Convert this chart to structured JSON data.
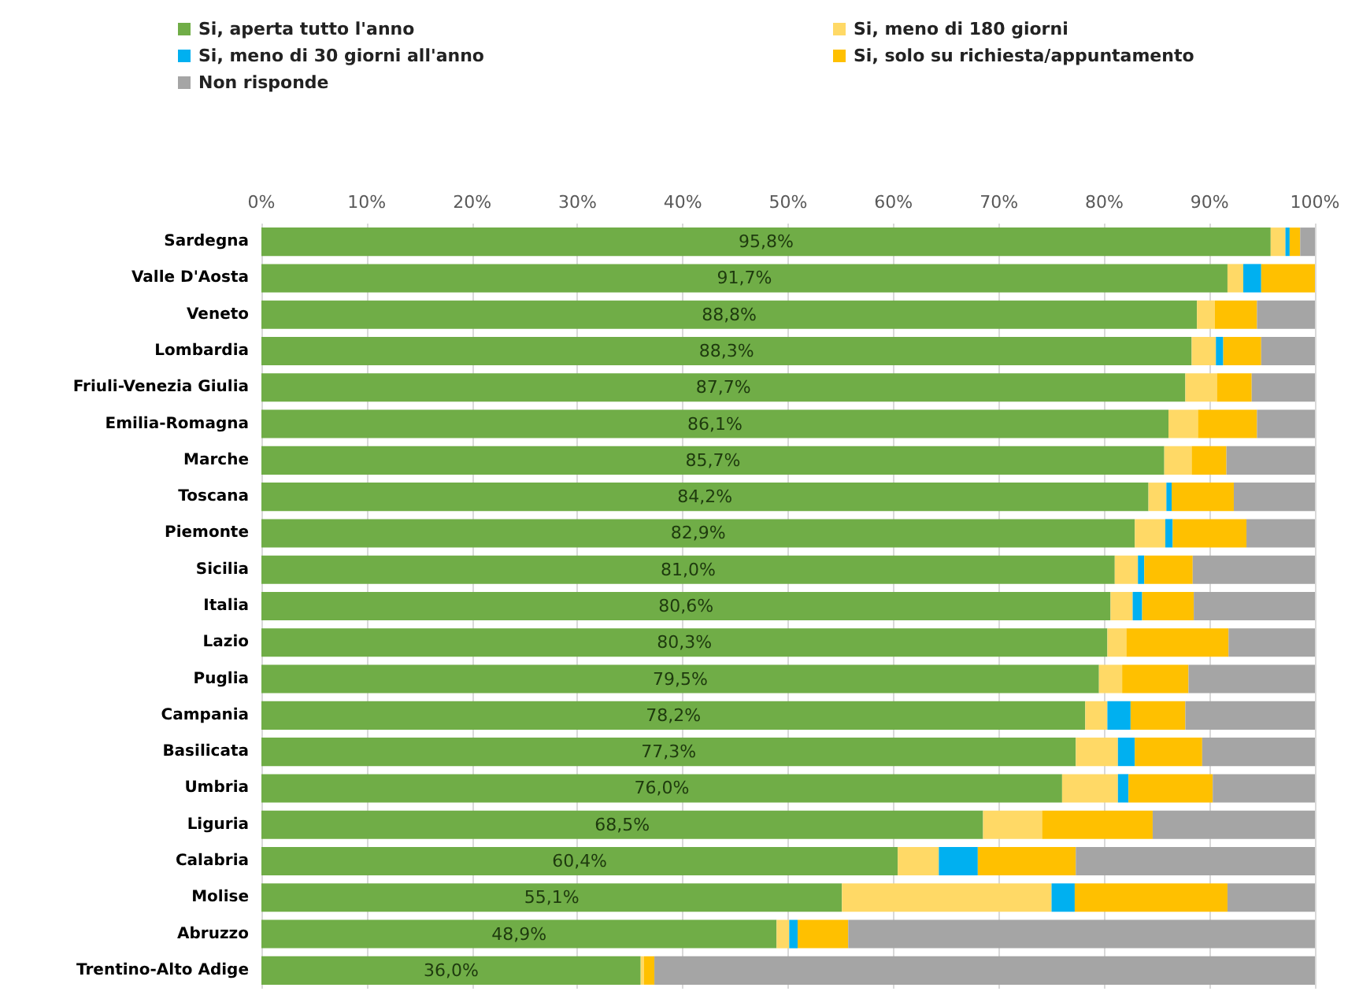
{
  "chart_data": {
    "type": "bar",
    "orientation": "horizontal",
    "stacked": true,
    "legend": "top",
    "grid": "x",
    "categories": [
      "Sardegna",
      "Valle D'Aosta",
      "Veneto",
      "Lombardia",
      "Friuli-Venezia Giulia",
      "Emilia-Romagna",
      "Marche",
      "Toscana",
      "Piemonte",
      "Sicilia",
      "Italia",
      "Lazio",
      "Puglia",
      "Campania",
      "Basilicata",
      "Umbria",
      "Liguria",
      "Calabria",
      "Molise",
      "Abruzzo",
      "Trentino-Alto Adige"
    ],
    "xlim": [
      0,
      100
    ],
    "xticks": [
      {
        "value": 0,
        "label": "0%"
      },
      {
        "value": 10,
        "label": "10%"
      },
      {
        "value": 20,
        "label": "20%"
      },
      {
        "value": 30,
        "label": "30%"
      },
      {
        "value": 40,
        "label": "40%"
      },
      {
        "value": 50,
        "label": "50%"
      },
      {
        "value": 60,
        "label": "60%"
      },
      {
        "value": 70,
        "label": "70%"
      },
      {
        "value": 80,
        "label": "80%"
      },
      {
        "value": 90,
        "label": "90%"
      },
      {
        "value": 100,
        "label": "100%"
      }
    ],
    "series": [
      {
        "name": "Si, aperta tutto l'anno",
        "color": "#70ad47",
        "values": [
          95.8,
          91.7,
          88.8,
          88.3,
          87.7,
          86.1,
          85.7,
          84.2,
          82.9,
          81.0,
          80.6,
          80.3,
          79.5,
          78.2,
          77.3,
          76.0,
          68.5,
          60.4,
          55.1,
          48.9,
          36.0
        ],
        "value_labels": [
          "95,8%",
          "91,7%",
          "88,8%",
          "88,3%",
          "87,7%",
          "86,1%",
          "85,7%",
          "84,2%",
          "82,9%",
          "81,0%",
          "80,6%",
          "80,3%",
          "79,5%",
          "78,2%",
          "77,3%",
          "76,0%",
          "68,5%",
          "60,4%",
          "55,1%",
          "48,9%",
          "36,0%"
        ]
      },
      {
        "name": "Si, meno di 180 giorni",
        "color": "#ffd966",
        "values": [
          1.4,
          1.5,
          1.7,
          2.3,
          3.0,
          2.8,
          2.6,
          1.7,
          2.9,
          2.2,
          2.1,
          1.8,
          2.2,
          2.1,
          4.0,
          5.3,
          5.6,
          3.9,
          19.9,
          1.2,
          0.3
        ]
      },
      {
        "name": "Si, meno di 30 giorni all'anno",
        "color": "#00b0f0",
        "values": [
          0.4,
          1.7,
          0,
          0.7,
          0,
          0,
          0,
          0.5,
          0.7,
          0.6,
          0.9,
          0,
          0,
          2.2,
          1.6,
          1.0,
          0,
          3.7,
          2.2,
          0.8,
          0
        ]
      },
      {
        "name": "Si, solo su richiesta/appuntamento",
        "color": "#ffc000",
        "values": [
          1.0,
          5.1,
          4.0,
          3.6,
          3.3,
          5.6,
          3.3,
          5.9,
          7.0,
          4.6,
          4.9,
          9.7,
          6.3,
          5.2,
          6.4,
          8.0,
          10.5,
          9.3,
          14.5,
          4.8,
          1.0
        ]
      },
      {
        "name": "Non risponde",
        "color": "#a5a5a5",
        "values": [
          1.4,
          0,
          5.5,
          5.1,
          6.0,
          5.5,
          8.4,
          7.7,
          6.5,
          11.6,
          11.5,
          8.2,
          12.0,
          12.3,
          10.7,
          9.7,
          15.4,
          22.7,
          8.3,
          44.3,
          62.7
        ]
      }
    ]
  }
}
